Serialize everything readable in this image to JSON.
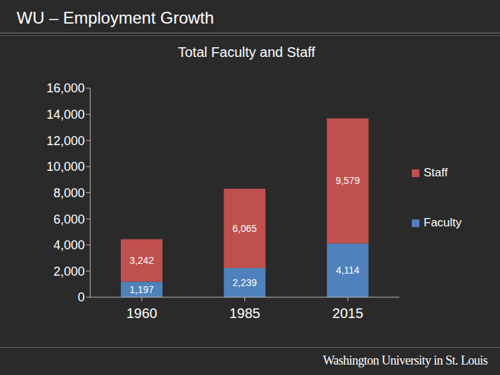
{
  "slide": {
    "title": "WU – Employment Growth",
    "footer": "Washington University in St. Louis"
  },
  "chart_data": {
    "type": "bar",
    "title": "Total Faculty and Staff",
    "categories": [
      "1960",
      "1985",
      "2015"
    ],
    "series": [
      {
        "name": "Faculty",
        "color": "#4f81bd",
        "values": [
          1197,
          2239,
          4114
        ],
        "value_labels": [
          "1,197",
          "2,239",
          "4,114"
        ]
      },
      {
        "name": "Staff",
        "color": "#c0504d",
        "values": [
          3242,
          6065,
          9579
        ],
        "value_labels": [
          "3,242",
          "6,065",
          "9,579"
        ]
      }
    ],
    "stacked": true,
    "data_labels": true,
    "legend": "right",
    "grid": false,
    "ylim": [
      0,
      16000
    ],
    "yticks": [
      0,
      {
        "value": 2000,
        "label": "2,000"
      },
      {
        "value": 4000,
        "label": "4,000"
      },
      {
        "value": 6000,
        "label": "6,000"
      },
      {
        "value": 8000,
        "label": "8,000"
      },
      {
        "value": 10000,
        "label": "10,000"
      },
      {
        "value": 12000,
        "label": "12,000"
      },
      {
        "value": 14000,
        "label": "14,000"
      },
      {
        "value": 16000,
        "label": "16,000"
      }
    ]
  }
}
